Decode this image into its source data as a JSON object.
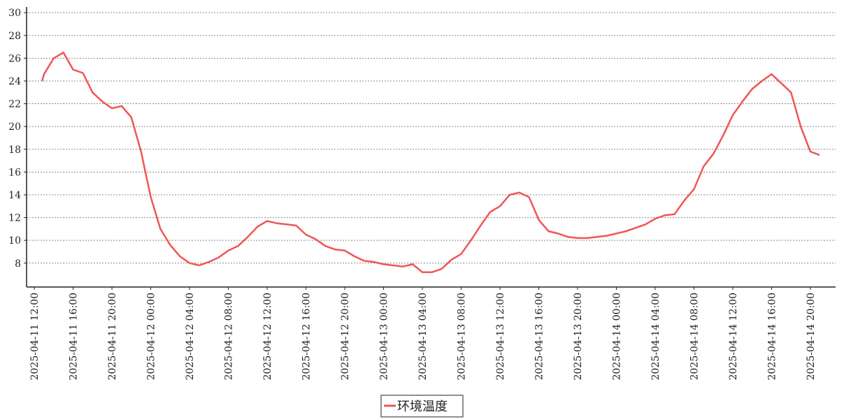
{
  "chart_data": {
    "type": "line",
    "x": [
      "2025-04-11 12:48",
      "2025-04-11 13:00",
      "2025-04-11 14:00",
      "2025-04-11 15:00",
      "2025-04-11 16:00",
      "2025-04-11 17:00",
      "2025-04-11 18:00",
      "2025-04-11 19:00",
      "2025-04-11 20:00",
      "2025-04-11 21:00",
      "2025-04-11 22:00",
      "2025-04-11 23:00",
      "2025-04-12 00:00",
      "2025-04-12 01:00",
      "2025-04-12 02:00",
      "2025-04-12 03:00",
      "2025-04-12 04:00",
      "2025-04-12 05:00",
      "2025-04-12 06:00",
      "2025-04-12 07:00",
      "2025-04-12 08:00",
      "2025-04-12 09:00",
      "2025-04-12 10:00",
      "2025-04-12 11:00",
      "2025-04-12 12:00",
      "2025-04-12 13:00",
      "2025-04-12 14:00",
      "2025-04-12 15:00",
      "2025-04-12 16:00",
      "2025-04-12 17:00",
      "2025-04-12 18:00",
      "2025-04-12 19:00",
      "2025-04-12 20:00",
      "2025-04-12 21:00",
      "2025-04-12 22:00",
      "2025-04-12 23:00",
      "2025-04-13 00:00",
      "2025-04-13 01:00",
      "2025-04-13 02:00",
      "2025-04-13 03:00",
      "2025-04-13 04:00",
      "2025-04-13 05:00",
      "2025-04-13 06:00",
      "2025-04-13 07:00",
      "2025-04-13 08:00",
      "2025-04-13 09:00",
      "2025-04-13 10:00",
      "2025-04-13 11:00",
      "2025-04-13 12:00",
      "2025-04-13 13:00",
      "2025-04-13 14:00",
      "2025-04-13 15:00",
      "2025-04-13 16:00",
      "2025-04-13 17:00",
      "2025-04-13 18:00",
      "2025-04-13 19:00",
      "2025-04-13 20:00",
      "2025-04-13 21:00",
      "2025-04-13 22:00",
      "2025-04-13 23:00",
      "2025-04-14 00:00",
      "2025-04-14 01:00",
      "2025-04-14 02:00",
      "2025-04-14 03:00",
      "2025-04-14 04:00",
      "2025-04-14 05:00",
      "2025-04-14 06:00",
      "2025-04-14 07:00",
      "2025-04-14 08:00",
      "2025-04-14 09:00",
      "2025-04-14 10:00",
      "2025-04-14 11:00",
      "2025-04-14 12:00",
      "2025-04-14 13:00",
      "2025-04-14 14:00",
      "2025-04-14 15:00",
      "2025-04-14 16:00",
      "2025-04-14 17:00",
      "2025-04-14 18:00",
      "2025-04-14 19:00",
      "2025-04-14 20:00",
      "2025-04-14 20:56"
    ],
    "series": [
      {
        "name": "环境温度",
        "color": "#f05555",
        "values": [
          24.0,
          24.6,
          26.0,
          26.5,
          25.0,
          24.7,
          23.0,
          22.2,
          21.6,
          21.8,
          20.8,
          17.8,
          13.8,
          11.0,
          9.6,
          8.6,
          8.0,
          7.8,
          8.1,
          8.5,
          9.1,
          9.5,
          10.3,
          11.2,
          11.7,
          11.5,
          11.4,
          11.3,
          10.5,
          10.1,
          9.5,
          9.2,
          9.1,
          8.6,
          8.2,
          8.1,
          7.9,
          7.8,
          7.7,
          7.9,
          7.2,
          7.2,
          7.5,
          8.3,
          8.8,
          10.0,
          11.3,
          12.5,
          13.0,
          14.0,
          14.2,
          13.8,
          11.8,
          10.8,
          10.6,
          10.3,
          10.2,
          10.2,
          10.3,
          10.4,
          10.6,
          10.8,
          11.1,
          11.4,
          11.9,
          12.2,
          12.3,
          13.5,
          14.5,
          16.5,
          17.6,
          19.2,
          21.0,
          22.2,
          23.3,
          24.0,
          24.6,
          23.8,
          23.0,
          20.0,
          17.8,
          17.5
        ]
      }
    ],
    "xlim": [
      "2025-04-11 11:12",
      "2025-04-14 22:36"
    ],
    "xticks": [
      "2025-04-11 12:00",
      "2025-04-11 16:00",
      "2025-04-11 20:00",
      "2025-04-12 00:00",
      "2025-04-12 04:00",
      "2025-04-12 08:00",
      "2025-04-12 12:00",
      "2025-04-12 16:00",
      "2025-04-12 20:00",
      "2025-04-13 00:00",
      "2025-04-13 04:00",
      "2025-04-13 08:00",
      "2025-04-13 12:00",
      "2025-04-13 16:00",
      "2025-04-13 20:00",
      "2025-04-14 00:00",
      "2025-04-14 04:00",
      "2025-04-14 08:00",
      "2025-04-14 12:00",
      "2025-04-14 16:00",
      "2025-04-14 20:00"
    ],
    "ylim": [
      5.9,
      30.5
    ],
    "yticks": [
      8,
      10,
      12,
      14,
      16,
      18,
      20,
      22,
      24,
      26,
      28,
      30
    ],
    "grid": true
  }
}
